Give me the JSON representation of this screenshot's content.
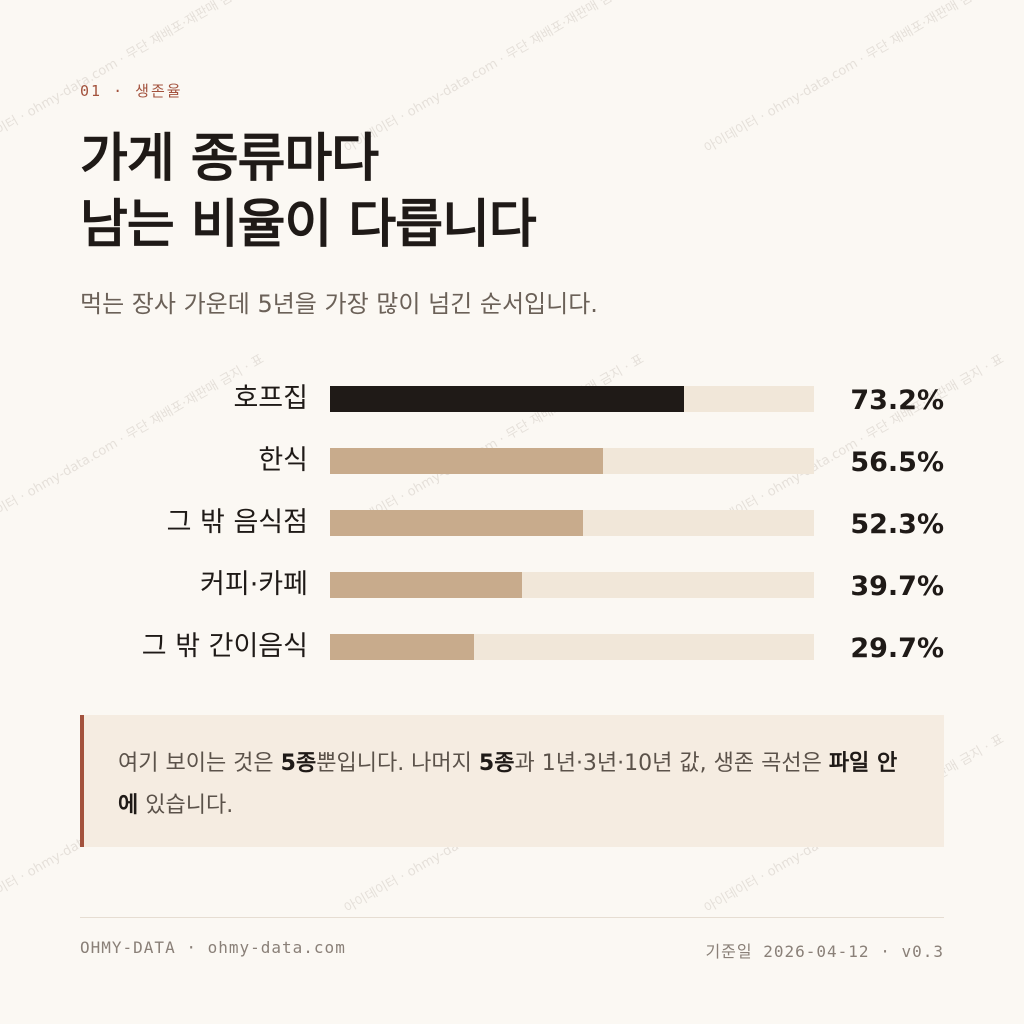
{
  "header": {
    "eyebrow": "01 · 생존율",
    "title_line1": "가게 종류마다",
    "title_line2": "남는 비율이 다릅니다",
    "subtitle": "먹는 장사 가운데 5년을 가장 많이 넘긴 순서입니다."
  },
  "chart_data": {
    "type": "bar",
    "orientation": "horizontal",
    "title": "",
    "xlabel": "",
    "ylabel": "",
    "xlim": [
      0,
      100
    ],
    "categories": [
      "호프집",
      "한식",
      "그 밖 음식점",
      "커피·카페",
      "그 밖 간이음식"
    ],
    "values": [
      73.2,
      56.5,
      52.3,
      39.7,
      29.7
    ],
    "value_labels": [
      "73.2%",
      "56.5%",
      "52.3%",
      "39.7%",
      "29.7%"
    ],
    "colors": {
      "highlight": "#1f1a17",
      "bar": "#c8ab8c",
      "track": "#f1e7d9"
    }
  },
  "note": {
    "p1": "여기 보이는 것은 ",
    "b1": "5종",
    "p2": "뿐입니다. 나머지 ",
    "b2": "5종",
    "p3": "과 1년·3년·10년 값, 생존 곡선은 ",
    "b3": "파일 안에",
    "p4": " 있습니다."
  },
  "footer": {
    "left": "OHMY-DATA · ohmy-data.com",
    "right": "기준일 2026-04-12 · v0.3"
  },
  "watermark": {
    "text": "아이데이터 · ohmy-data.com · 무단 재배포·재판매 금지 · 표"
  },
  "colors": {
    "accent": "#a3523d",
    "background": "#fbf8f3"
  }
}
